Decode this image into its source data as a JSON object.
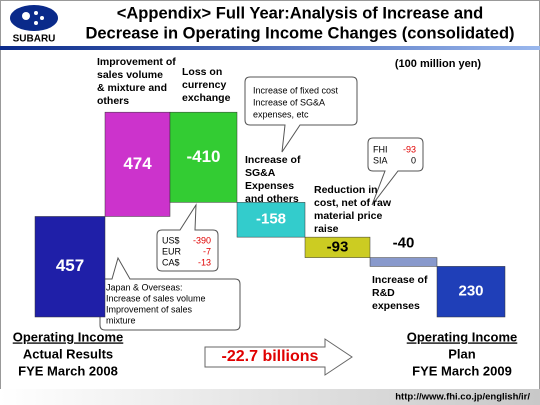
{
  "chart_data": {
    "type": "waterfall",
    "title": [
      "<Appendix> Full Year:Analysis of Increase and",
      "Decrease in Operating Income Changes (consolidated)"
    ],
    "logo": "SUBARU",
    "unit": "(100 million yen)",
    "categories": [
      [
        "Operating Income",
        "Actual Results",
        "FYE March 2008"
      ],
      [
        "Improvement of",
        "sales volume",
        "& mixture and",
        "others"
      ],
      [
        "Loss on",
        "currency",
        "exchange"
      ],
      [
        "Increase of",
        "SG&A",
        "Expenses",
        "and others"
      ],
      [
        "Reduction in",
        "cost, net of raw",
        "material price",
        "raise"
      ],
      [
        "Increase of",
        "R&D",
        "expenses"
      ],
      [
        "Operating Income",
        "Plan",
        "FYE March 2009"
      ]
    ],
    "measure": [
      "absolute",
      "relative",
      "relative",
      "relative",
      "relative",
      "relative",
      "total"
    ],
    "values": [
      457,
      474,
      -410,
      -158,
      -93,
      -40,
      230
    ],
    "colors": [
      "#1f1fa8",
      "#cc33cc",
      "#33cc33",
      "#33cccc",
      "#cccc22",
      "#8899cc",
      "#1f3fb8"
    ],
    "callouts": [
      [
        "Increase of fixed cost",
        "Increase of SG&A",
        "expenses, etc"
      ],
      [
        "Japan & Overseas:",
        "Increase of sales volume",
        "Improvement of sales",
        "mixture"
      ]
    ],
    "breakdowns": [
      [
        {
          "label": "US$",
          "value": -390
        },
        {
          "label": "EUR",
          "value": -7
        },
        {
          "label": "CA$",
          "value": -13
        }
      ],
      [
        {
          "label": "FHI",
          "value": -93
        },
        {
          "label": "SIA",
          "value": 0
        }
      ]
    ],
    "change": "-22.7 billions",
    "url": "http://www.fhi.co.jp/english/ir/"
  }
}
